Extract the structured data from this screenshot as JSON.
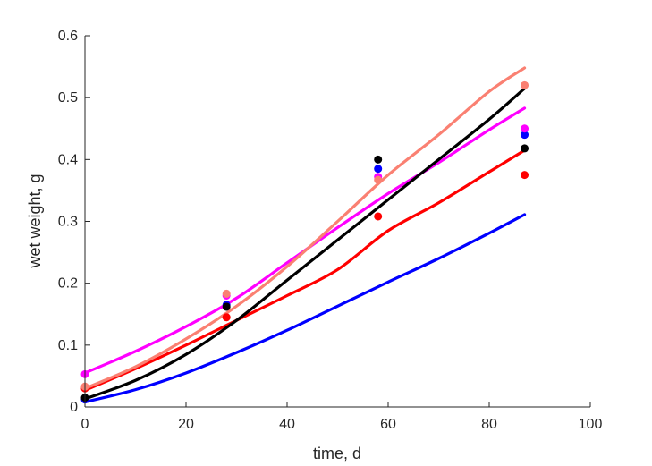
{
  "chart_data": {
    "type": "line",
    "title": "",
    "xlabel": "time, d",
    "ylabel": "wet weight, g",
    "xlim": [
      0,
      100
    ],
    "ylim": [
      0,
      0.6
    ],
    "xticks": [
      0,
      20,
      40,
      60,
      80,
      100
    ],
    "yticks": [
      0,
      0.1,
      0.2,
      0.3,
      0.4,
      0.5,
      0.6
    ],
    "xtick_labels": [
      "0",
      "20",
      "40",
      "60",
      "80",
      "100"
    ],
    "ytick_labels": [
      "0",
      "0.1",
      "0.2",
      "0.3",
      "0.4",
      "0.5",
      "0.6"
    ],
    "grid": false,
    "legend": "none",
    "series": [
      {
        "color": "#0000ff",
        "line": {
          "x": [
            0,
            10,
            20,
            30,
            40,
            50,
            60,
            70,
            80,
            87
          ],
          "y": [
            0.008,
            0.028,
            0.055,
            0.088,
            0.124,
            0.163,
            0.202,
            0.24,
            0.281,
            0.311
          ]
        },
        "points": {
          "x": [
            0,
            28,
            58,
            87
          ],
          "y": [
            0.012,
            0.165,
            0.385,
            0.44
          ]
        }
      },
      {
        "color": "#ff0000",
        "line": {
          "x": [
            0,
            10,
            20,
            30,
            40,
            50,
            60,
            70,
            80,
            87
          ],
          "y": [
            0.027,
            0.062,
            0.1,
            0.14,
            0.18,
            0.222,
            0.285,
            0.33,
            0.38,
            0.415
          ]
        },
        "points": {
          "x": [
            0,
            28,
            58,
            87
          ],
          "y": [
            0.03,
            0.145,
            0.308,
            0.375
          ]
        }
      },
      {
        "color": "#ff00ff",
        "line": {
          "x": [
            0,
            10,
            20,
            30,
            40,
            50,
            60,
            70,
            80,
            87
          ],
          "y": [
            0.055,
            0.09,
            0.13,
            0.176,
            0.233,
            0.29,
            0.345,
            0.395,
            0.448,
            0.483
          ]
        },
        "points": {
          "x": [
            0,
            28,
            58,
            87
          ],
          "y": [
            0.053,
            0.18,
            0.372,
            0.45
          ]
        }
      },
      {
        "color": "#fa8072",
        "line": {
          "x": [
            0,
            10,
            20,
            30,
            40,
            50,
            60,
            70,
            80,
            87
          ],
          "y": [
            0.03,
            0.065,
            0.11,
            0.163,
            0.227,
            0.3,
            0.375,
            0.44,
            0.51,
            0.548
          ]
        },
        "points": {
          "x": [
            0,
            28,
            58,
            87
          ],
          "y": [
            0.033,
            0.183,
            0.367,
            0.52
          ]
        }
      },
      {
        "color": "#000000",
        "line": {
          "x": [
            0,
            10,
            20,
            30,
            40,
            50,
            60,
            70,
            80,
            87
          ],
          "y": [
            0.013,
            0.043,
            0.085,
            0.14,
            0.205,
            0.27,
            0.335,
            0.4,
            0.465,
            0.515
          ]
        },
        "points": {
          "x": [
            0,
            28,
            58,
            87
          ],
          "y": [
            0.015,
            0.162,
            0.4,
            0.418
          ]
        }
      }
    ]
  }
}
